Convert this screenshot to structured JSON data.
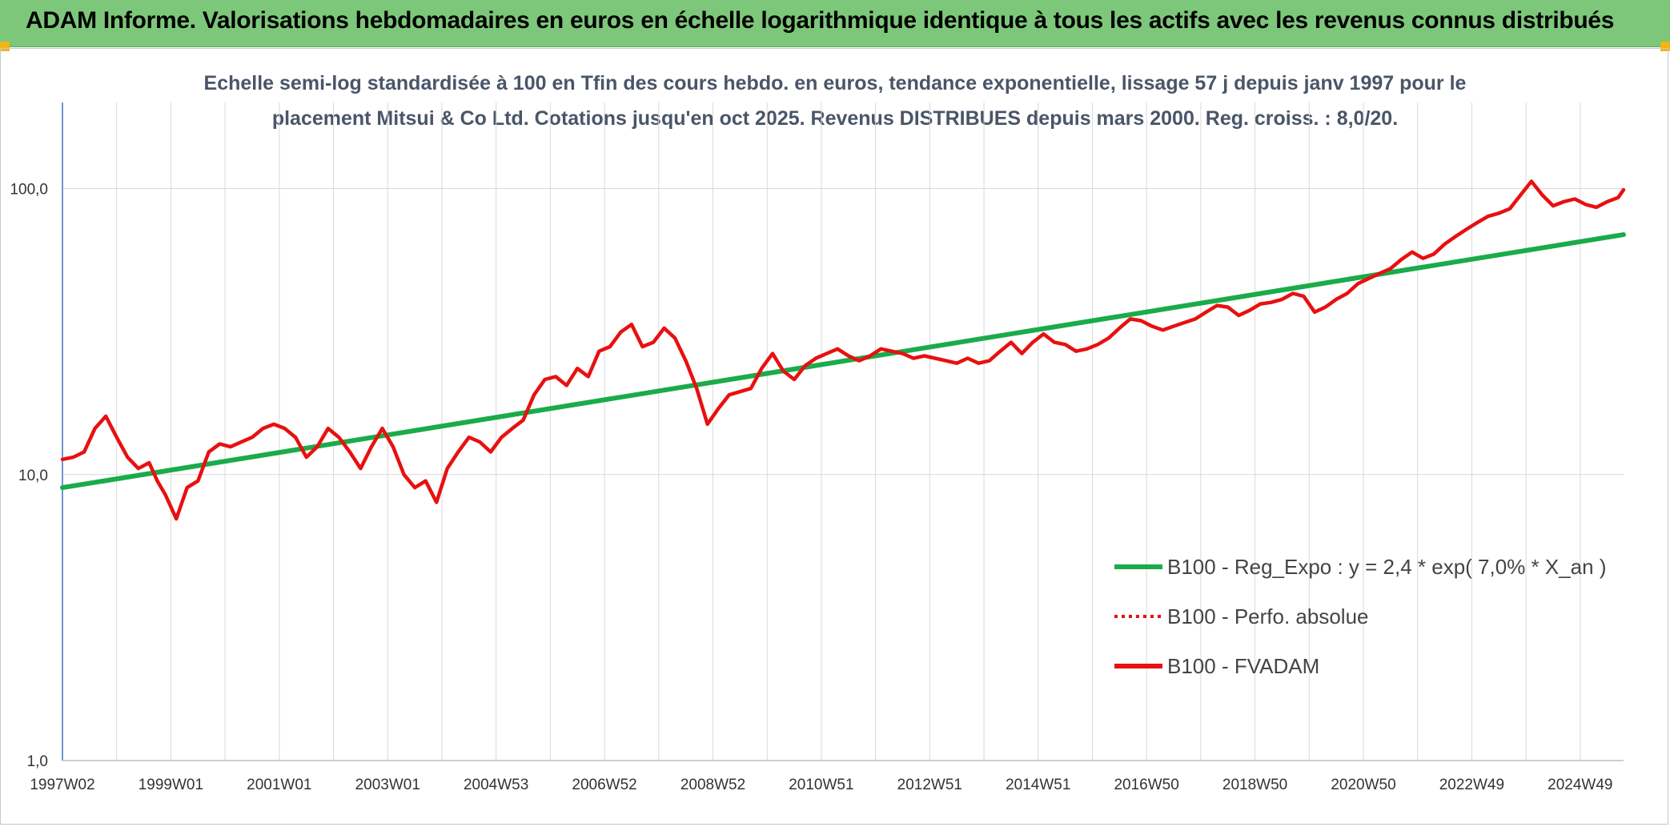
{
  "banner": {
    "title": "ADAM Informe. Valorisations hebdomadaires en euros en échelle logarithmique identique à tous les actifs avec les revenus connus distribués",
    "background": "#7dc77a",
    "corner_color": "#f2b418"
  },
  "chart_data": {
    "type": "line",
    "title_lines": [
      "Echelle semi-log standardisée à 100 en Tfin des cours hebdo. en euros, tendance exponentielle, lissage 57 j depuis janv 1997 pour le",
      "placement Mitsui & Co Ltd. Cotations jusqu'en oct 2025. Revenus DISTRIBUES depuis mars 2000. Reg. croiss. : 8,0/20."
    ],
    "y_scale": "log10",
    "ylim": [
      1,
      200
    ],
    "y_ticks": [
      1,
      10,
      100
    ],
    "y_tick_labels": [
      "1,0",
      "10,0",
      "100,0"
    ],
    "xlim": [
      1997.0,
      2025.8
    ],
    "x_tick_labels": [
      "1997W02",
      "1999W01",
      "2001W01",
      "2003W01",
      "2004W53",
      "2006W52",
      "2008W52",
      "2010W51",
      "2012W51",
      "2014W51",
      "2016W50",
      "2018W50",
      "2020W50",
      "2022W49",
      "2024W49"
    ],
    "x_tick_positions": [
      1997.0,
      1999.0,
      2001.0,
      2003.0,
      2005.0,
      2007.0,
      2009.0,
      2011.0,
      2013.0,
      2015.0,
      2017.0,
      2019.0,
      2021.0,
      2023.0,
      2025.0
    ],
    "grid": {
      "vertical": true,
      "horizontal": true
    },
    "legend_position": "bottom-right",
    "series": [
      {
        "name": "B100 - Reg_Expo : y = 2,4 * exp( 7,0% *  X_an )",
        "color": "#1aab4a",
        "style": "solid",
        "x": [
          1997.0,
          2025.8
        ],
        "y": [
          9.0,
          69.0
        ]
      },
      {
        "name": "B100 - Perfo. absolue",
        "color": "#e81010",
        "style": "dotted",
        "x": [],
        "y": []
      },
      {
        "name": "B100 - FVADAM",
        "color": "#e81010",
        "style": "solid",
        "x": [
          1997.0,
          1997.2,
          1997.4,
          1997.6,
          1997.8,
          1998.0,
          1998.2,
          1998.4,
          1998.6,
          1998.75,
          1998.9,
          1999.1,
          1999.3,
          1999.5,
          1999.7,
          1999.9,
          2000.1,
          2000.3,
          2000.5,
          2000.7,
          2000.9,
          2001.1,
          2001.3,
          2001.5,
          2001.7,
          2001.9,
          2002.1,
          2002.3,
          2002.5,
          2002.7,
          2002.9,
          2003.1,
          2003.3,
          2003.5,
          2003.7,
          2003.9,
          2004.1,
          2004.3,
          2004.5,
          2004.7,
          2004.9,
          2005.1,
          2005.3,
          2005.5,
          2005.7,
          2005.9,
          2006.1,
          2006.3,
          2006.5,
          2006.7,
          2006.9,
          2007.1,
          2007.3,
          2007.5,
          2007.7,
          2007.9,
          2008.1,
          2008.3,
          2008.5,
          2008.7,
          2008.9,
          2009.1,
          2009.3,
          2009.5,
          2009.7,
          2009.9,
          2010.1,
          2010.3,
          2010.5,
          2010.7,
          2010.9,
          2011.1,
          2011.3,
          2011.5,
          2011.7,
          2011.9,
          2012.1,
          2012.3,
          2012.5,
          2012.7,
          2012.9,
          2013.1,
          2013.3,
          2013.5,
          2013.7,
          2013.9,
          2014.1,
          2014.3,
          2014.5,
          2014.7,
          2014.9,
          2015.1,
          2015.3,
          2015.5,
          2015.7,
          2015.9,
          2016.1,
          2016.3,
          2016.5,
          2016.7,
          2016.9,
          2017.1,
          2017.3,
          2017.5,
          2017.7,
          2017.9,
          2018.1,
          2018.3,
          2018.5,
          2018.7,
          2018.9,
          2019.1,
          2019.3,
          2019.5,
          2019.7,
          2019.9,
          2020.1,
          2020.3,
          2020.5,
          2020.7,
          2020.9,
          2021.1,
          2021.3,
          2021.5,
          2021.7,
          2021.9,
          2022.1,
          2022.3,
          2022.5,
          2022.7,
          2022.9,
          2023.1,
          2023.3,
          2023.5,
          2023.7,
          2023.9,
          2024.1,
          2024.3,
          2024.5,
          2024.7,
          2024.9,
          2025.1,
          2025.3,
          2025.5,
          2025.7,
          2025.8
        ],
        "y": [
          11.3,
          11.5,
          12.0,
          14.5,
          16.0,
          13.5,
          11.5,
          10.5,
          11.0,
          9.5,
          8.5,
          7.0,
          9.0,
          9.5,
          12.0,
          12.8,
          12.5,
          13.0,
          13.5,
          14.5,
          15.0,
          14.5,
          13.5,
          11.5,
          12.5,
          14.5,
          13.5,
          12.0,
          10.5,
          12.5,
          14.5,
          12.5,
          10.0,
          9.0,
          9.5,
          8.0,
          10.5,
          12.0,
          13.5,
          13.0,
          12.0,
          13.5,
          14.5,
          15.5,
          19.0,
          21.5,
          22.0,
          20.5,
          23.5,
          22.0,
          27.0,
          28.0,
          31.5,
          33.5,
          28.0,
          29.0,
          32.5,
          30.0,
          25.0,
          20.0,
          15.0,
          17.0,
          19.0,
          19.5,
          20.0,
          23.5,
          26.5,
          23.0,
          21.5,
          24.0,
          25.5,
          26.5,
          27.5,
          26.0,
          25.0,
          26.0,
          27.5,
          27.0,
          26.5,
          25.5,
          26.0,
          25.5,
          25.0,
          24.5,
          25.5,
          24.5,
          25.0,
          27.0,
          29.0,
          26.5,
          29.0,
          31.0,
          29.0,
          28.5,
          27.0,
          27.5,
          28.5,
          30.0,
          32.5,
          35.0,
          34.5,
          33.0,
          32.0,
          33.0,
          34.0,
          35.0,
          37.0,
          39.0,
          38.5,
          36.0,
          37.5,
          39.5,
          40.0,
          41.0,
          43.0,
          42.0,
          37.0,
          38.5,
          41.0,
          43.0,
          46.5,
          48.5,
          50.5,
          52.5,
          56.5,
          60.0,
          57.0,
          59.0,
          64.0,
          68.0,
          72.0,
          76.0,
          80.0,
          82.0,
          85.0,
          95.0,
          106.0,
          95.0,
          87.0,
          90.0,
          92.0,
          88.0,
          86.0,
          90.0,
          93.0,
          99.0
        ]
      }
    ]
  }
}
